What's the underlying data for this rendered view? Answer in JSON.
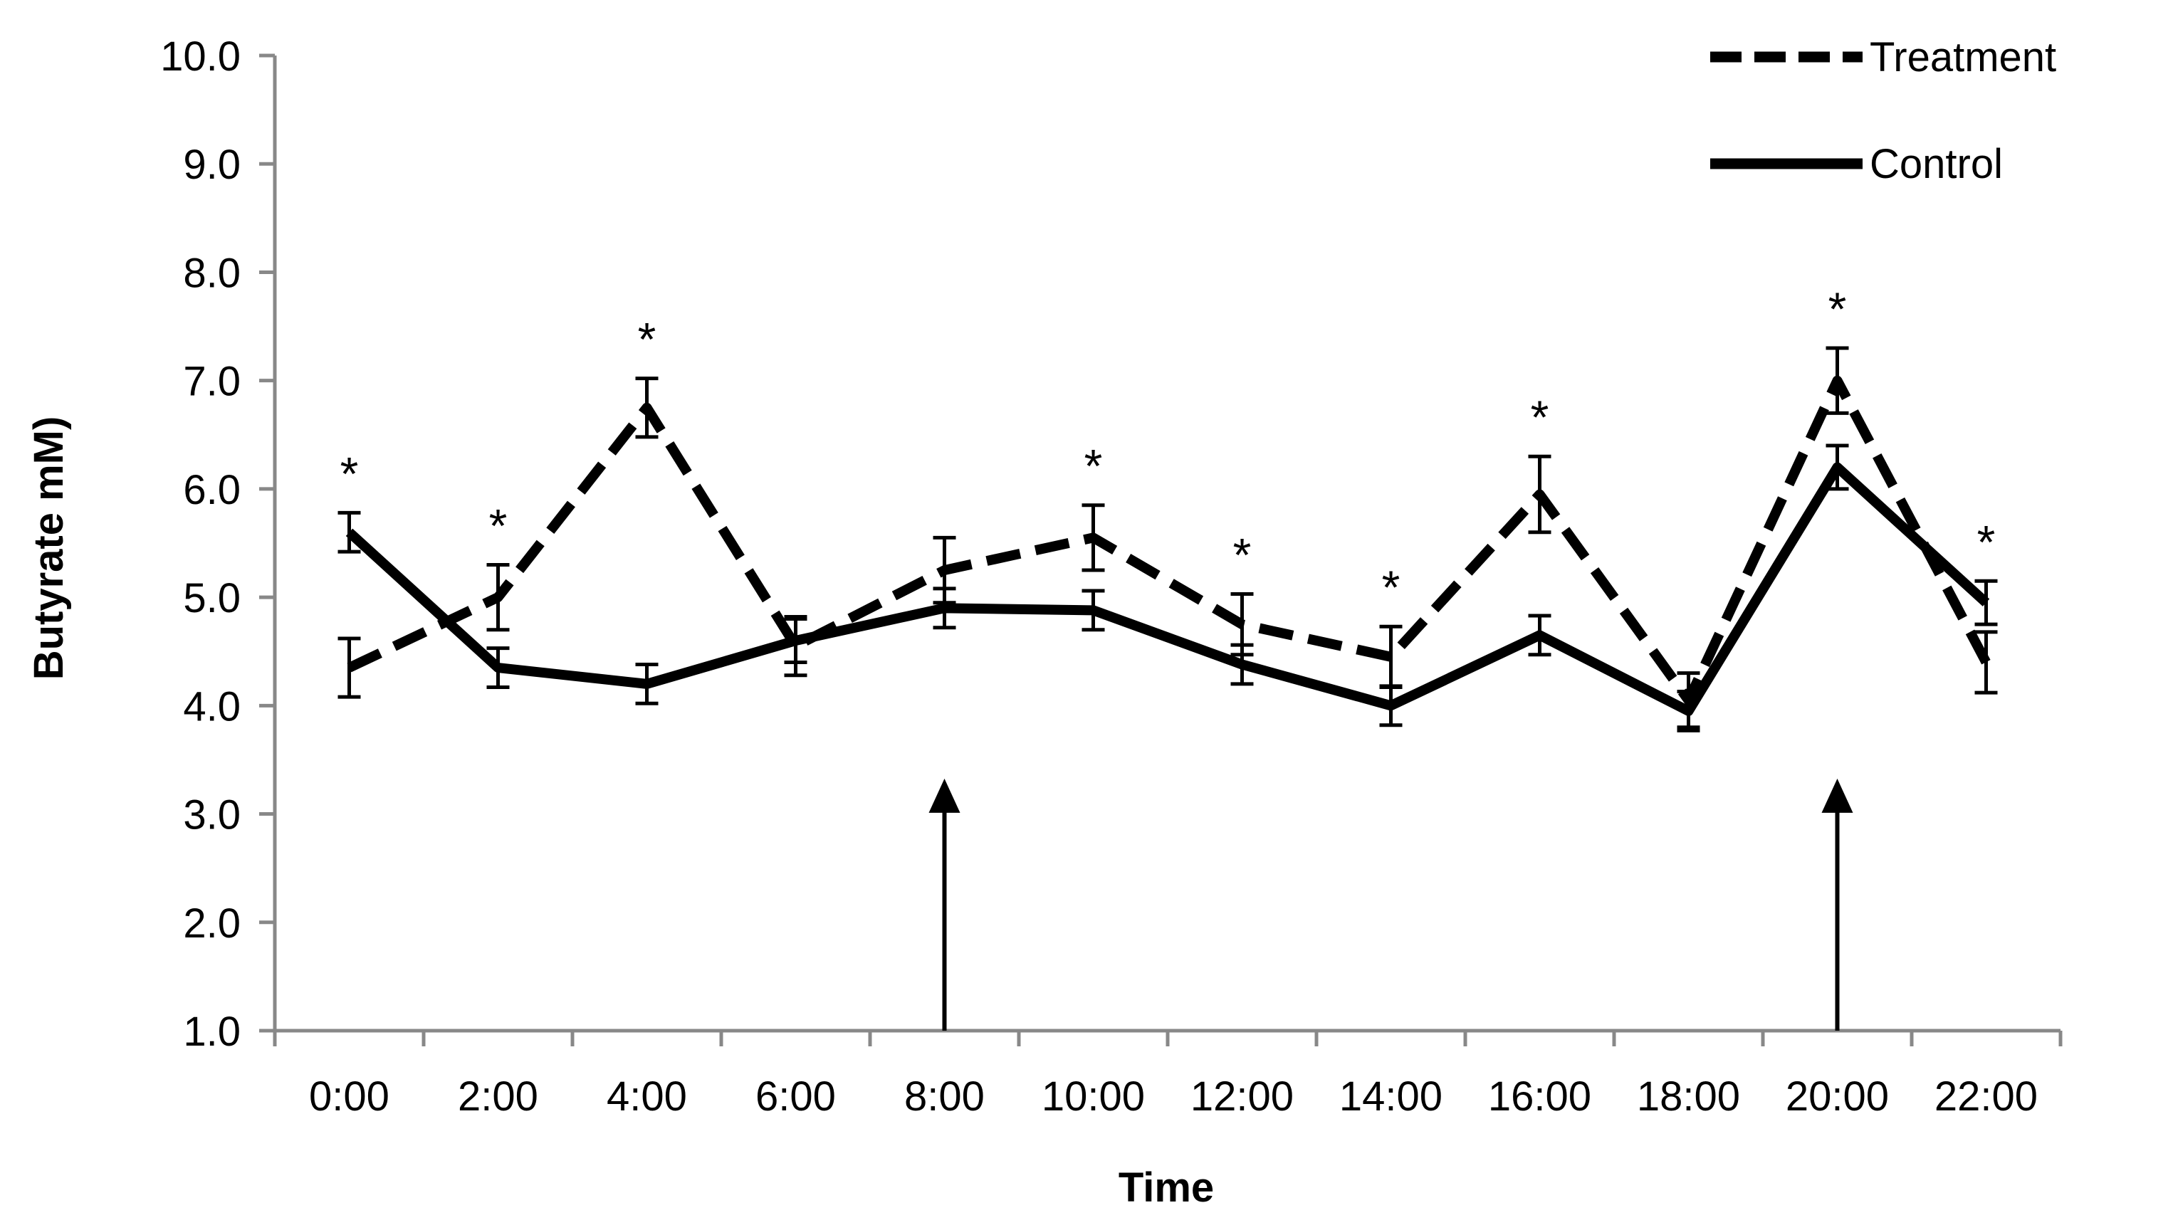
{
  "chart_data": {
    "type": "line",
    "title": "",
    "xlabel": "Time",
    "ylabel": "Butyrate mM)",
    "categories": [
      "0:00",
      "2:00",
      "4:00",
      "6:00",
      "8:00",
      "10:00",
      "12:00",
      "14:00",
      "16:00",
      "18:00",
      "20:00",
      "22:00"
    ],
    "ylim": [
      1.0,
      10.0
    ],
    "yticks": [
      "1.0",
      "2.0",
      "3.0",
      "4.0",
      "5.0",
      "6.0",
      "7.0",
      "8.0",
      "9.0",
      "10.0"
    ],
    "grid": false,
    "legend_position": "top-right",
    "series": [
      {
        "name": "Treatment",
        "style": "dashed",
        "values": [
          4.35,
          5.0,
          6.75,
          4.55,
          5.25,
          5.55,
          4.75,
          4.45,
          5.95,
          4.05,
          7.0,
          4.4
        ],
        "errors": [
          0.27,
          0.3,
          0.27,
          0.27,
          0.3,
          0.3,
          0.28,
          0.28,
          0.35,
          0.25,
          0.3,
          0.28
        ]
      },
      {
        "name": "Control",
        "style": "solid",
        "values": [
          5.6,
          4.35,
          4.2,
          4.6,
          4.9,
          4.88,
          4.38,
          4.0,
          4.65,
          3.95,
          6.2,
          4.95
        ],
        "errors": [
          0.18,
          0.18,
          0.18,
          0.2,
          0.18,
          0.18,
          0.18,
          0.18,
          0.18,
          0.18,
          0.2,
          0.2
        ]
      }
    ],
    "significance_marker": "*",
    "significant_categories": [
      "0:00",
      "2:00",
      "4:00",
      "10:00",
      "12:00",
      "14:00",
      "16:00",
      "20:00",
      "22:00"
    ],
    "arrows": [
      {
        "x": 4.5,
        "from_y": 1.0,
        "to_y": 3.3
      },
      {
        "x": 10.5,
        "from_y": 1.0,
        "to_y": 3.3
      }
    ],
    "colors": {
      "line": "#000000",
      "background": "#ffffff"
    }
  }
}
